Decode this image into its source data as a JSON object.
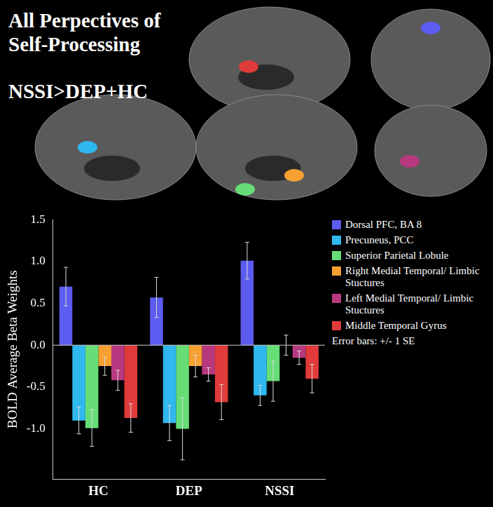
{
  "chart_data": {
    "type": "bar",
    "title": "All Perpectives of Self-Processing",
    "subtitle": "NSSI>DEP+HC",
    "y_label": "BOLD Average Beta Weights",
    "categories": [
      "HC",
      "DEP",
      "NSSI"
    ],
    "series": [
      {
        "name": "Dorsal PFC, BA 8",
        "color": "#5c5cf0",
        "values": [
          0.7,
          0.57,
          1.01
        ],
        "errors": [
          0.23,
          0.24,
          0.22
        ]
      },
      {
        "name": "Precuneus, PCC",
        "color": "#2fb8ee",
        "values": [
          -0.9,
          -0.93,
          -0.6
        ],
        "errors": [
          0.16,
          0.21,
          0.12
        ]
      },
      {
        "name": "Superior Parietal Lobule",
        "color": "#66dd77",
        "values": [
          -0.99,
          -1.0,
          -0.43
        ],
        "errors": [
          0.22,
          0.37,
          0.24
        ]
      },
      {
        "name": "Right Medial Temporal/ Limbic Stuctures",
        "color": "#f5a030",
        "values": [
          -0.25,
          -0.25,
          0.0
        ],
        "errors": [
          0.11,
          0.13,
          0.12
        ]
      },
      {
        "name": "Left Medial Temporal/ Limbic Stuctures",
        "color": "#b8387f",
        "values": [
          -0.42,
          -0.35,
          -0.15
        ],
        "errors": [
          0.12,
          0.08,
          0.08
        ]
      },
      {
        "name": "Middle Temporal Gyrus",
        "color": "#e03a3a",
        "values": [
          -0.87,
          -0.68,
          -0.4
        ],
        "errors": [
          0.17,
          0.21,
          0.17
        ]
      }
    ],
    "ylim": [
      -1.6,
      1.5
    ],
    "yticks": [
      {
        "value": -1,
        "label": "-1.0"
      },
      -0.5,
      {
        "value": 0,
        "label": "0.0"
      },
      0.5,
      {
        "value": 1,
        "label": "1.0"
      },
      1.5
    ],
    "grid": false,
    "legend": "right",
    "annotations": [
      "Error bars: +/- 1 SE"
    ]
  }
}
